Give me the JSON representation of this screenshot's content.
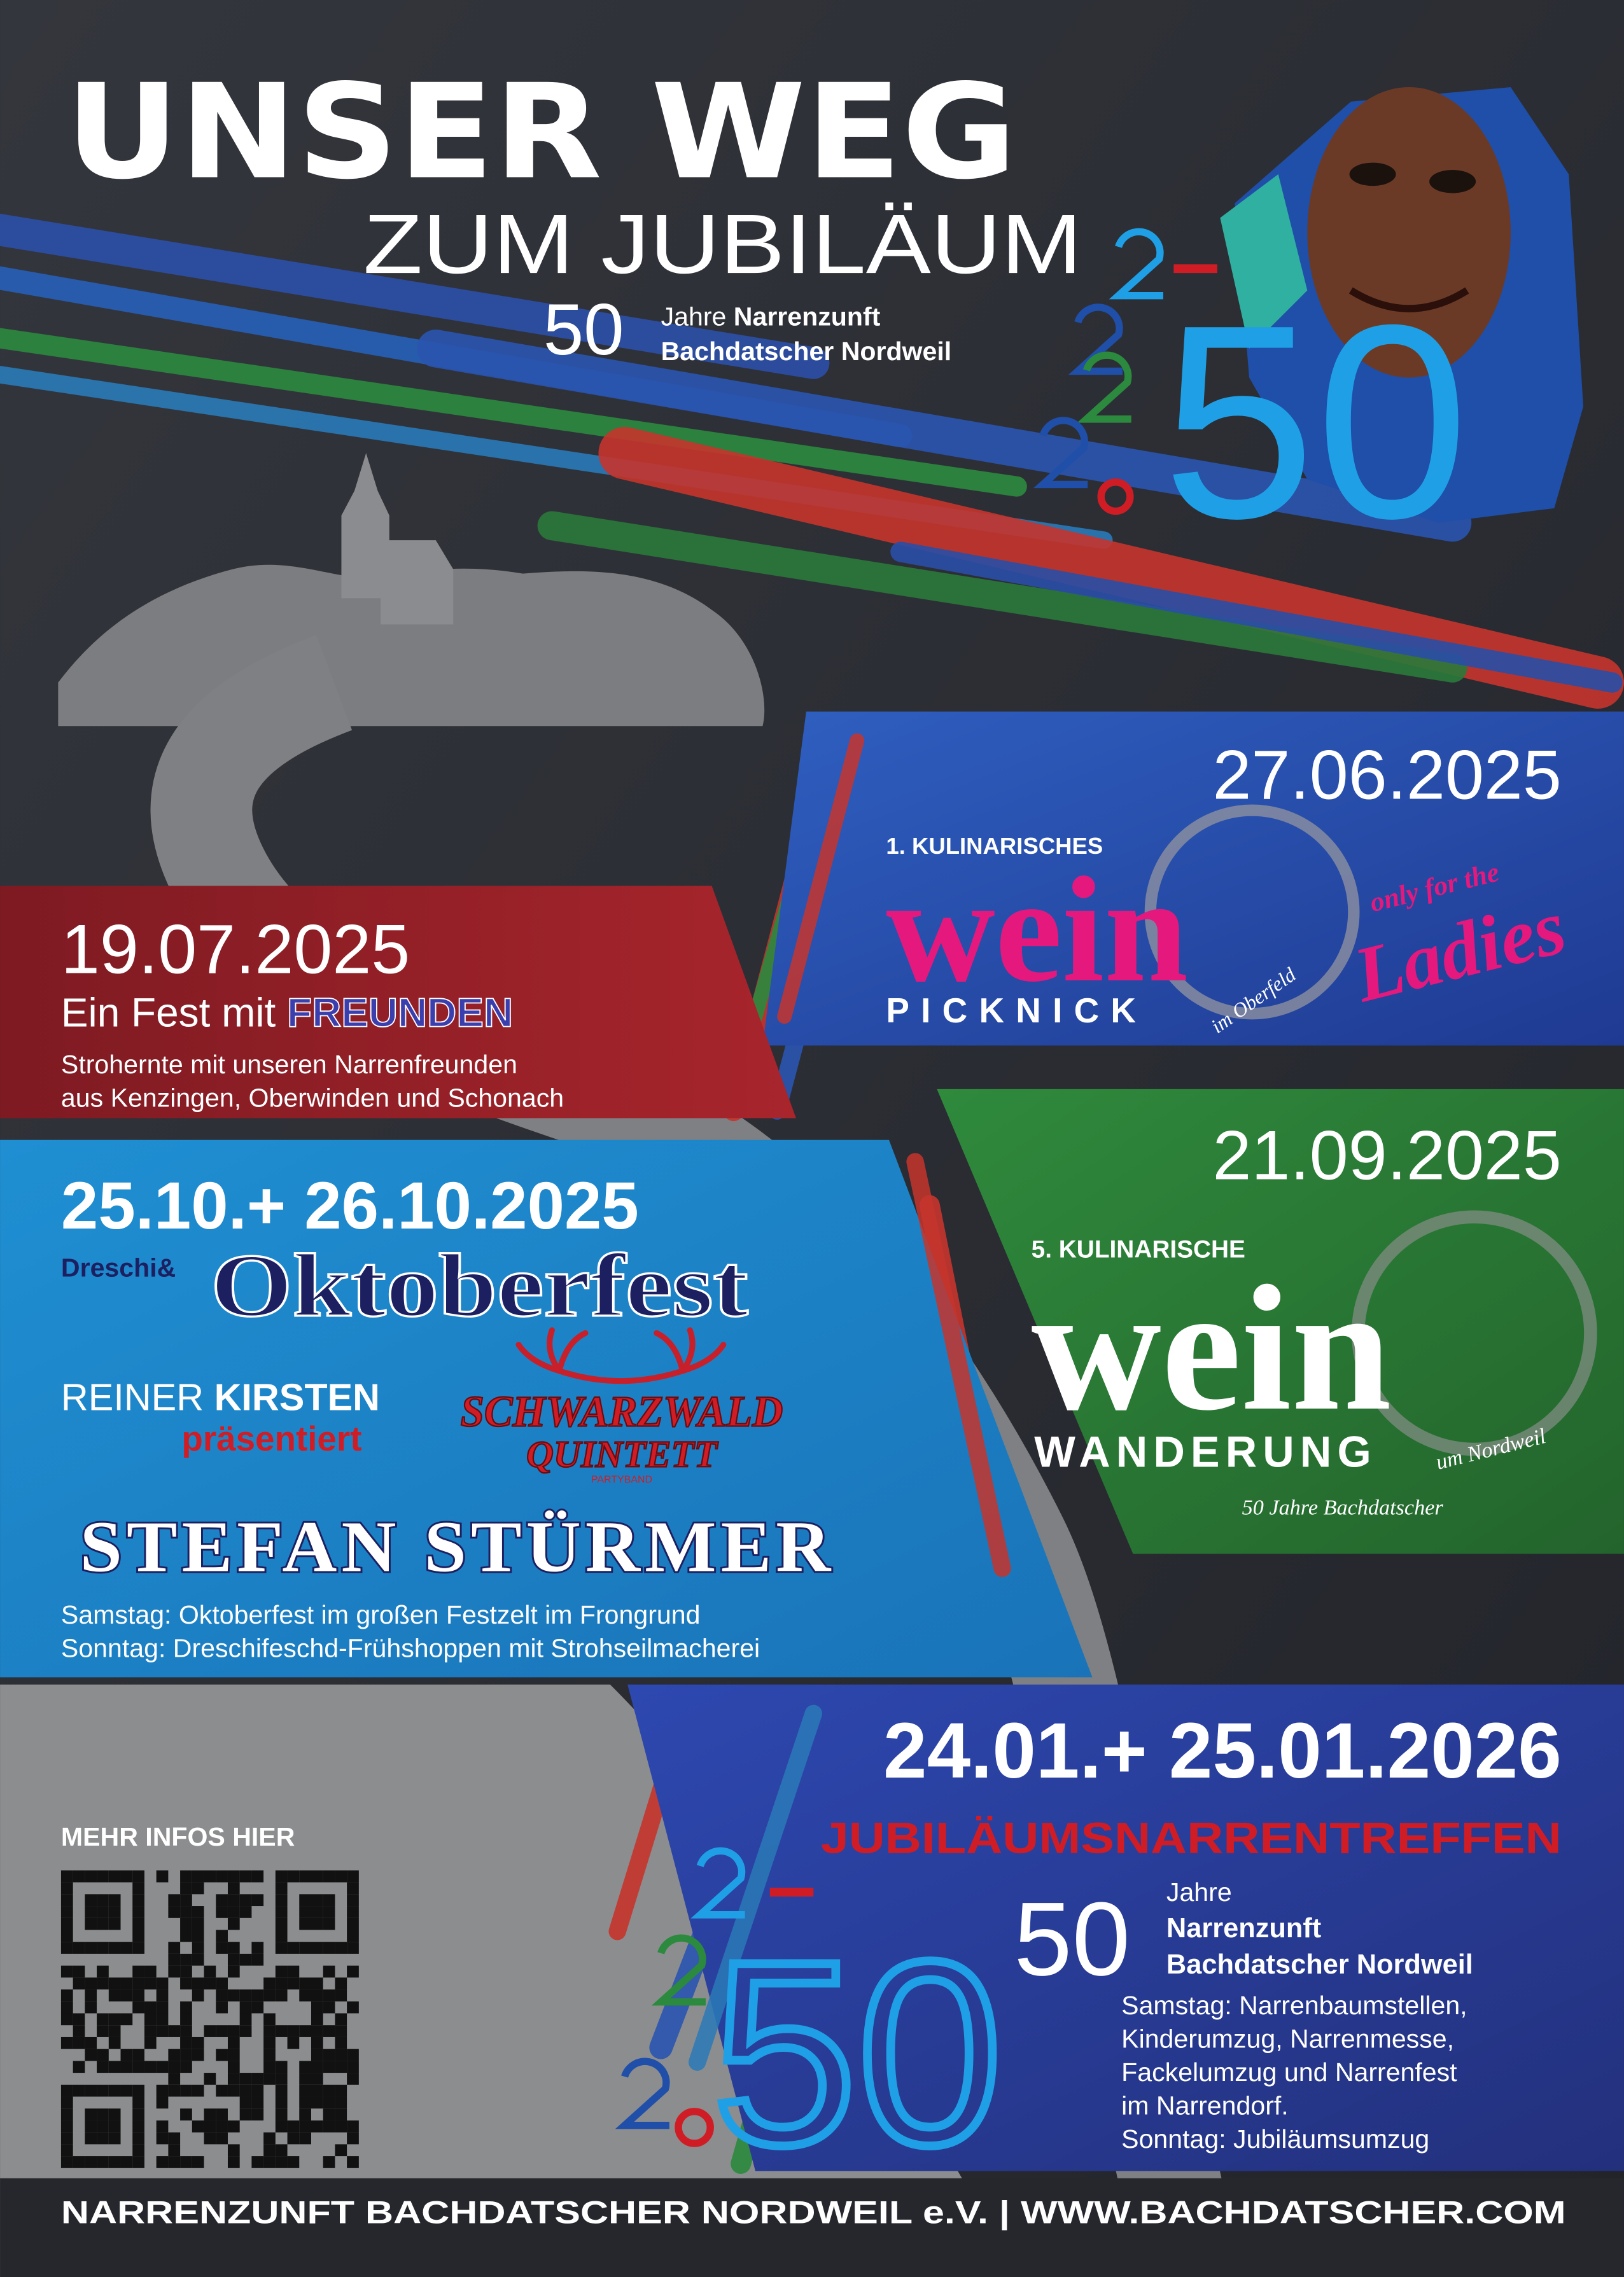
{
  "header": {
    "title": "UNSER WEG",
    "subtitle": "ZUM JUBILÄUM",
    "anniversary_number": "50",
    "anniversary_years": "Jahre",
    "anniversary_club": "Narrenzunft",
    "anniversary_name": "Bachdatscher Nordweil"
  },
  "events": [
    {
      "date": "27.06.2025",
      "kicker": "1. KULINARISCHES",
      "title": "wein",
      "subtitle": "PICKNICK",
      "location": "im Oberfeld",
      "note": "only for the",
      "note_highlight": "Ladies"
    },
    {
      "date": "19.07.2025",
      "title": "Ein Fest mit",
      "title_highlight": "FREUNDEN",
      "description": [
        "Strohernte mit unseren Narrenfreunden",
        "aus Kenzingen, Oberwinden und Schonach"
      ]
    },
    {
      "date": "25.10.+ 26.10.2025",
      "prefix": "Dreschi&",
      "title": "Oktoberfest",
      "presenter_first": "REINER",
      "presenter_last": "KIRSTEN",
      "presents": "präsentiert",
      "band_line1": "SCHWARZWALD",
      "band_line2": "QUINTETT",
      "band_type": "PARTYBAND",
      "headliner": "STEFAN STÜRMER",
      "description": [
        "Samstag: Oktoberfest im großen Festzelt im Frongrund",
        "Sonntag: Dreschifeschd-Frühshoppen mit Strohseilmacherei"
      ]
    },
    {
      "date": "21.09.2025",
      "kicker": "5. KULINARISCHE",
      "title": "wein",
      "subtitle": "WANDERUNG",
      "location": "um Nordweil",
      "note": "50 Jahre Bachdatscher"
    },
    {
      "date": "24.01.+ 25.01.2026",
      "title": "JUBILÄUMSNARRENTREFFEN",
      "anniversary_number": "50",
      "anniversary_years": "Jahre",
      "anniversary_club": "Narrenzunft",
      "anniversary_name": "Bachdatscher Nordweil",
      "description": [
        "Samstag: Narrenbaumstellen,",
        "Kinderumzug, Narrenmesse,",
        "Fackelumzug und Narrenfest",
        "im Narrendorf.",
        "Sonntag: Jubiläumsumzug"
      ]
    }
  ],
  "qr": {
    "label": "MEHR INFOS HIER"
  },
  "footer": {
    "text": "NARRENZUNFT BACHDATSCHER NORDWEIL e.V. | WWW.BACHDATSCHER.COM"
  }
}
